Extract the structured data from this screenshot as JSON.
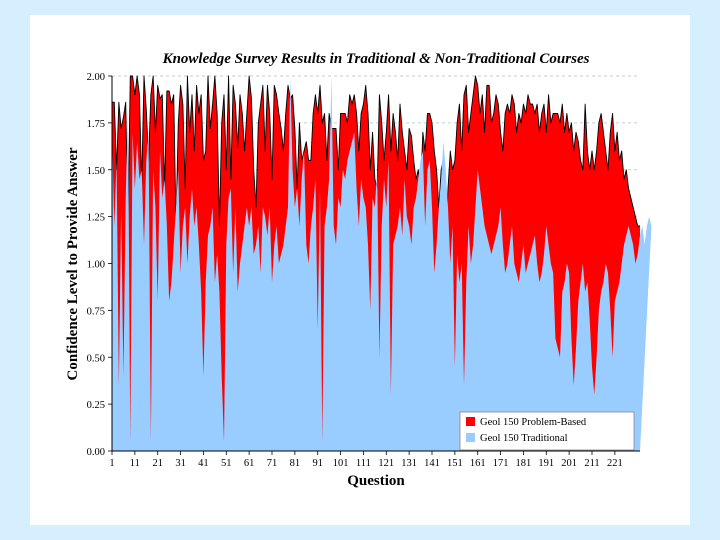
{
  "chart_data": {
    "type": "area",
    "title": "Knowledge Survey Results in Traditional & Non-Traditional Courses",
    "xlabel": "Question",
    "ylabel": "Confidence Level to Provide Answer",
    "ylim": [
      0,
      2
    ],
    "y_ticks": [
      "0.00",
      "0.25",
      "0.50",
      "0.75",
      "1.00",
      "1.25",
      "1.50",
      "1.75",
      "2.00"
    ],
    "x_ticks": [
      "1",
      "11",
      "21",
      "31",
      "41",
      "51",
      "61",
      "71",
      "81",
      "91",
      "101",
      "111",
      "121",
      "131",
      "141",
      "151",
      "161",
      "171",
      "181",
      "191",
      "201",
      "211",
      "221"
    ],
    "grid": true,
    "legend": {
      "position": "bottom-right"
    },
    "series": [
      {
        "name": "Geol 150 Problem-Based",
        "color": "#ff0000",
        "values": [
          1.86,
          1.86,
          1.5,
          1.86,
          1.72,
          1.78,
          1.86,
          1.2,
          2.0,
          2.0,
          1.9,
          2.0,
          1.9,
          1.42,
          2.0,
          1.82,
          1.55,
          1.9,
          2.0,
          1.7,
          1.95,
          1.88,
          1.9,
          1.4,
          1.92,
          1.92,
          1.85,
          1.9,
          1.2,
          1.75,
          1.95,
          1.85,
          1.4,
          2.0,
          1.7,
          1.9,
          1.6,
          1.95,
          1.8,
          1.9,
          1.55,
          1.6,
          2.0,
          1.72,
          1.85,
          2.0,
          1.8,
          1.2,
          1.75,
          1.9,
          1.5,
          2.0,
          1.45,
          1.95,
          1.85,
          1.62,
          1.9,
          1.8,
          1.6,
          1.8,
          2.0,
          1.88,
          1.5,
          1.3,
          1.75,
          1.85,
          1.95,
          1.6,
          1.95,
          1.8,
          1.45,
          1.95,
          1.9,
          1.8,
          1.72,
          1.6,
          1.8,
          1.95,
          1.88,
          1.9,
          1.72,
          1.4,
          1.75,
          1.55,
          1.6,
          1.65,
          1.55,
          1.55,
          1.8,
          1.9,
          1.8,
          1.95,
          1.75,
          1.8,
          1.55,
          1.8,
          1.72,
          1.72,
          1.72,
          1.5,
          1.8,
          1.8,
          1.8,
          1.75,
          1.9,
          1.85,
          1.9,
          1.8,
          1.6,
          1.8,
          1.85,
          1.95,
          1.8,
          1.5,
          1.7,
          1.45,
          1.4,
          1.9,
          1.75,
          1.55,
          1.7,
          1.9,
          1.6,
          1.8,
          1.7,
          1.55,
          1.85,
          1.7,
          1.6,
          1.5,
          1.72,
          1.68,
          1.55,
          1.45,
          1.5,
          1.4,
          1.7,
          1.6,
          1.8,
          1.8,
          1.75,
          1.6,
          1.5,
          1.3,
          1.5,
          1.55,
          1.1,
          1.4,
          1.6,
          1.5,
          1.55,
          1.75,
          1.85,
          1.6,
          1.9,
          1.95,
          1.7,
          1.8,
          1.9,
          2.0,
          1.95,
          1.8,
          1.9,
          1.7,
          1.95,
          1.95,
          1.75,
          1.8,
          1.9,
          1.85,
          1.7,
          1.6,
          1.8,
          1.85,
          1.8,
          1.9,
          1.85,
          1.7,
          1.8,
          1.75,
          1.85,
          1.8,
          1.9,
          1.85,
          1.85,
          1.8,
          1.85,
          1.7,
          1.8,
          1.85,
          1.7,
          1.9,
          1.75,
          1.8,
          1.8,
          1.8,
          1.75,
          1.85,
          1.7,
          1.8,
          1.7,
          1.75,
          1.6,
          1.7,
          1.65,
          1.55,
          1.5,
          1.85,
          1.6,
          1.5,
          1.6,
          1.5,
          1.6,
          1.75,
          1.8,
          1.7,
          1.6,
          1.5,
          1.7,
          1.8,
          1.6,
          1.7,
          1.55,
          1.6,
          1.45,
          1.5,
          1.4,
          1.35,
          1.3,
          1.25,
          1.2,
          1.2
        ]
      },
      {
        "name": "Geol 150 Traditional",
        "color": "#99ccff",
        "values": [
          1.7,
          1.2,
          1.55,
          0.35,
          1.3,
          0.4,
          1.35,
          1.85,
          0.05,
          1.7,
          1.4,
          1.65,
          1.45,
          1.5,
          1.1,
          1.55,
          1.7,
          0.05,
          1.5,
          1.3,
          0.8,
          1.6,
          1.35,
          1.45,
          1.2,
          0.8,
          0.9,
          1.1,
          1.3,
          1.5,
          0.95,
          1.2,
          1.3,
          1.0,
          1.25,
          1.4,
          1.2,
          1.3,
          1.1,
          0.85,
          0.4,
          0.9,
          1.15,
          1.2,
          1.3,
          0.9,
          1.05,
          0.85,
          0.4,
          0.05,
          1.1,
          1.35,
          1.4,
          0.95,
          1.3,
          0.85,
          1.0,
          1.1,
          1.2,
          1.3,
          1.2,
          1.3,
          1.05,
          1.1,
          1.2,
          0.95,
          1.3,
          1.25,
          1.15,
          1.3,
          0.9,
          1.1,
          1.2,
          1.0,
          1.05,
          1.1,
          1.2,
          1.3,
          2.0,
          1.5,
          1.3,
          1.4,
          1.2,
          1.45,
          1.6,
          1.1,
          1.0,
          1.2,
          1.3,
          1.45,
          0.65,
          1.4,
          0.05,
          1.2,
          1.3,
          1.45,
          2.0,
          1.2,
          1.1,
          1.35,
          1.3,
          1.5,
          1.45,
          1.55,
          1.6,
          1.65,
          1.7,
          1.4,
          1.2,
          1.45,
          1.35,
          1.3,
          1.1,
          0.75,
          1.35,
          1.3,
          1.5,
          0.5,
          1.2,
          1.45,
          1.3,
          1.55,
          0.3,
          1.1,
          1.15,
          1.2,
          1.3,
          1.15,
          1.45,
          1.25,
          1.2,
          1.1,
          1.3,
          1.35,
          1.45,
          1.55,
          1.6,
          1.2,
          1.5,
          1.55,
          1.3,
          0.95,
          1.1,
          1.3,
          1.45,
          1.65,
          1.5,
          1.3,
          1.0,
          1.2,
          0.45,
          1.05,
          0.9,
          1.0,
          0.35,
          0.9,
          1.2,
          1.0,
          1.1,
          1.3,
          1.5,
          1.4,
          1.3,
          1.2,
          1.15,
          1.1,
          1.05,
          1.1,
          1.15,
          1.2,
          1.3,
          1.1,
          0.95,
          1.0,
          1.1,
          1.2,
          1.0,
          0.95,
          0.9,
          1.0,
          1.1,
          0.95,
          1.0,
          1.05,
          1.1,
          1.15,
          1.0,
          0.9,
          0.95,
          1.05,
          1.2,
          1.1,
          1.0,
          0.95,
          0.6,
          0.55,
          0.5,
          0.85,
          0.9,
          1.0,
          0.95,
          0.6,
          0.35,
          0.55,
          0.8,
          0.9,
          1.0,
          0.85,
          0.9,
          0.7,
          0.45,
          0.3,
          0.5,
          0.75,
          0.85,
          0.9,
          1.0,
          0.95,
          0.75,
          0.5,
          0.8,
          0.85,
          0.9,
          1.0,
          1.1,
          1.15,
          1.2,
          1.15,
          1.1,
          1.0,
          1.05,
          1.15,
          1.2,
          1.1,
          1.2,
          1.25,
          1.2
        ]
      }
    ]
  }
}
